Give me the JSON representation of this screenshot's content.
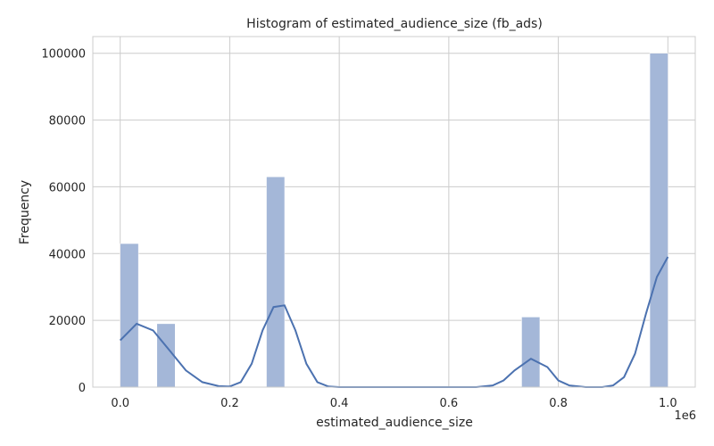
{
  "chart_data": {
    "type": "bar",
    "title": "Histogram of estimated_audience_size (fb_ads)",
    "xlabel": "estimated_audience_size",
    "ylabel": "Frequency",
    "x_offset_label": "1e6",
    "xlim": [
      -0.05,
      1.05
    ],
    "ylim": [
      0,
      105000
    ],
    "grid": true,
    "xticks": [
      0.0,
      0.2,
      0.4,
      0.6,
      0.8,
      1.0
    ],
    "xtick_labels": [
      "0.0",
      "0.2",
      "0.4",
      "0.6",
      "0.8",
      "1.0"
    ],
    "yticks": [
      0,
      20000,
      40000,
      60000,
      80000,
      100000
    ],
    "ytick_labels": [
      "0",
      "20000",
      "40000",
      "60000",
      "80000",
      "100000"
    ],
    "bin_width": 0.0333,
    "bins": [
      {
        "start": 0.0,
        "count": 43000
      },
      {
        "start": 0.067,
        "count": 19000
      },
      {
        "start": 0.267,
        "count": 63000
      },
      {
        "start": 0.733,
        "count": 21000
      },
      {
        "start": 0.967,
        "count": 100000
      }
    ],
    "kde": {
      "x": [
        0.0,
        0.03,
        0.06,
        0.09,
        0.12,
        0.15,
        0.18,
        0.2,
        0.22,
        0.24,
        0.26,
        0.28,
        0.3,
        0.32,
        0.34,
        0.36,
        0.38,
        0.4,
        0.45,
        0.5,
        0.55,
        0.6,
        0.65,
        0.68,
        0.7,
        0.72,
        0.75,
        0.78,
        0.8,
        0.82,
        0.85,
        0.88,
        0.9,
        0.92,
        0.94,
        0.96,
        0.98,
        1.0
      ],
      "y": [
        14000,
        19000,
        17000,
        11000,
        5000,
        1500,
        300,
        200,
        1500,
        7000,
        17000,
        24000,
        24500,
        17000,
        7000,
        1500,
        200,
        0,
        0,
        0,
        0,
        0,
        0,
        500,
        2000,
        5000,
        8500,
        6000,
        2000,
        500,
        0,
        0,
        500,
        3000,
        10000,
        22000,
        33000,
        39000
      ]
    },
    "colors": {
      "bar_fill": "#a4b7d8",
      "kde_line": "#4c72b0",
      "grid": "#cccccc",
      "axis_frame": "#cccccc"
    }
  }
}
